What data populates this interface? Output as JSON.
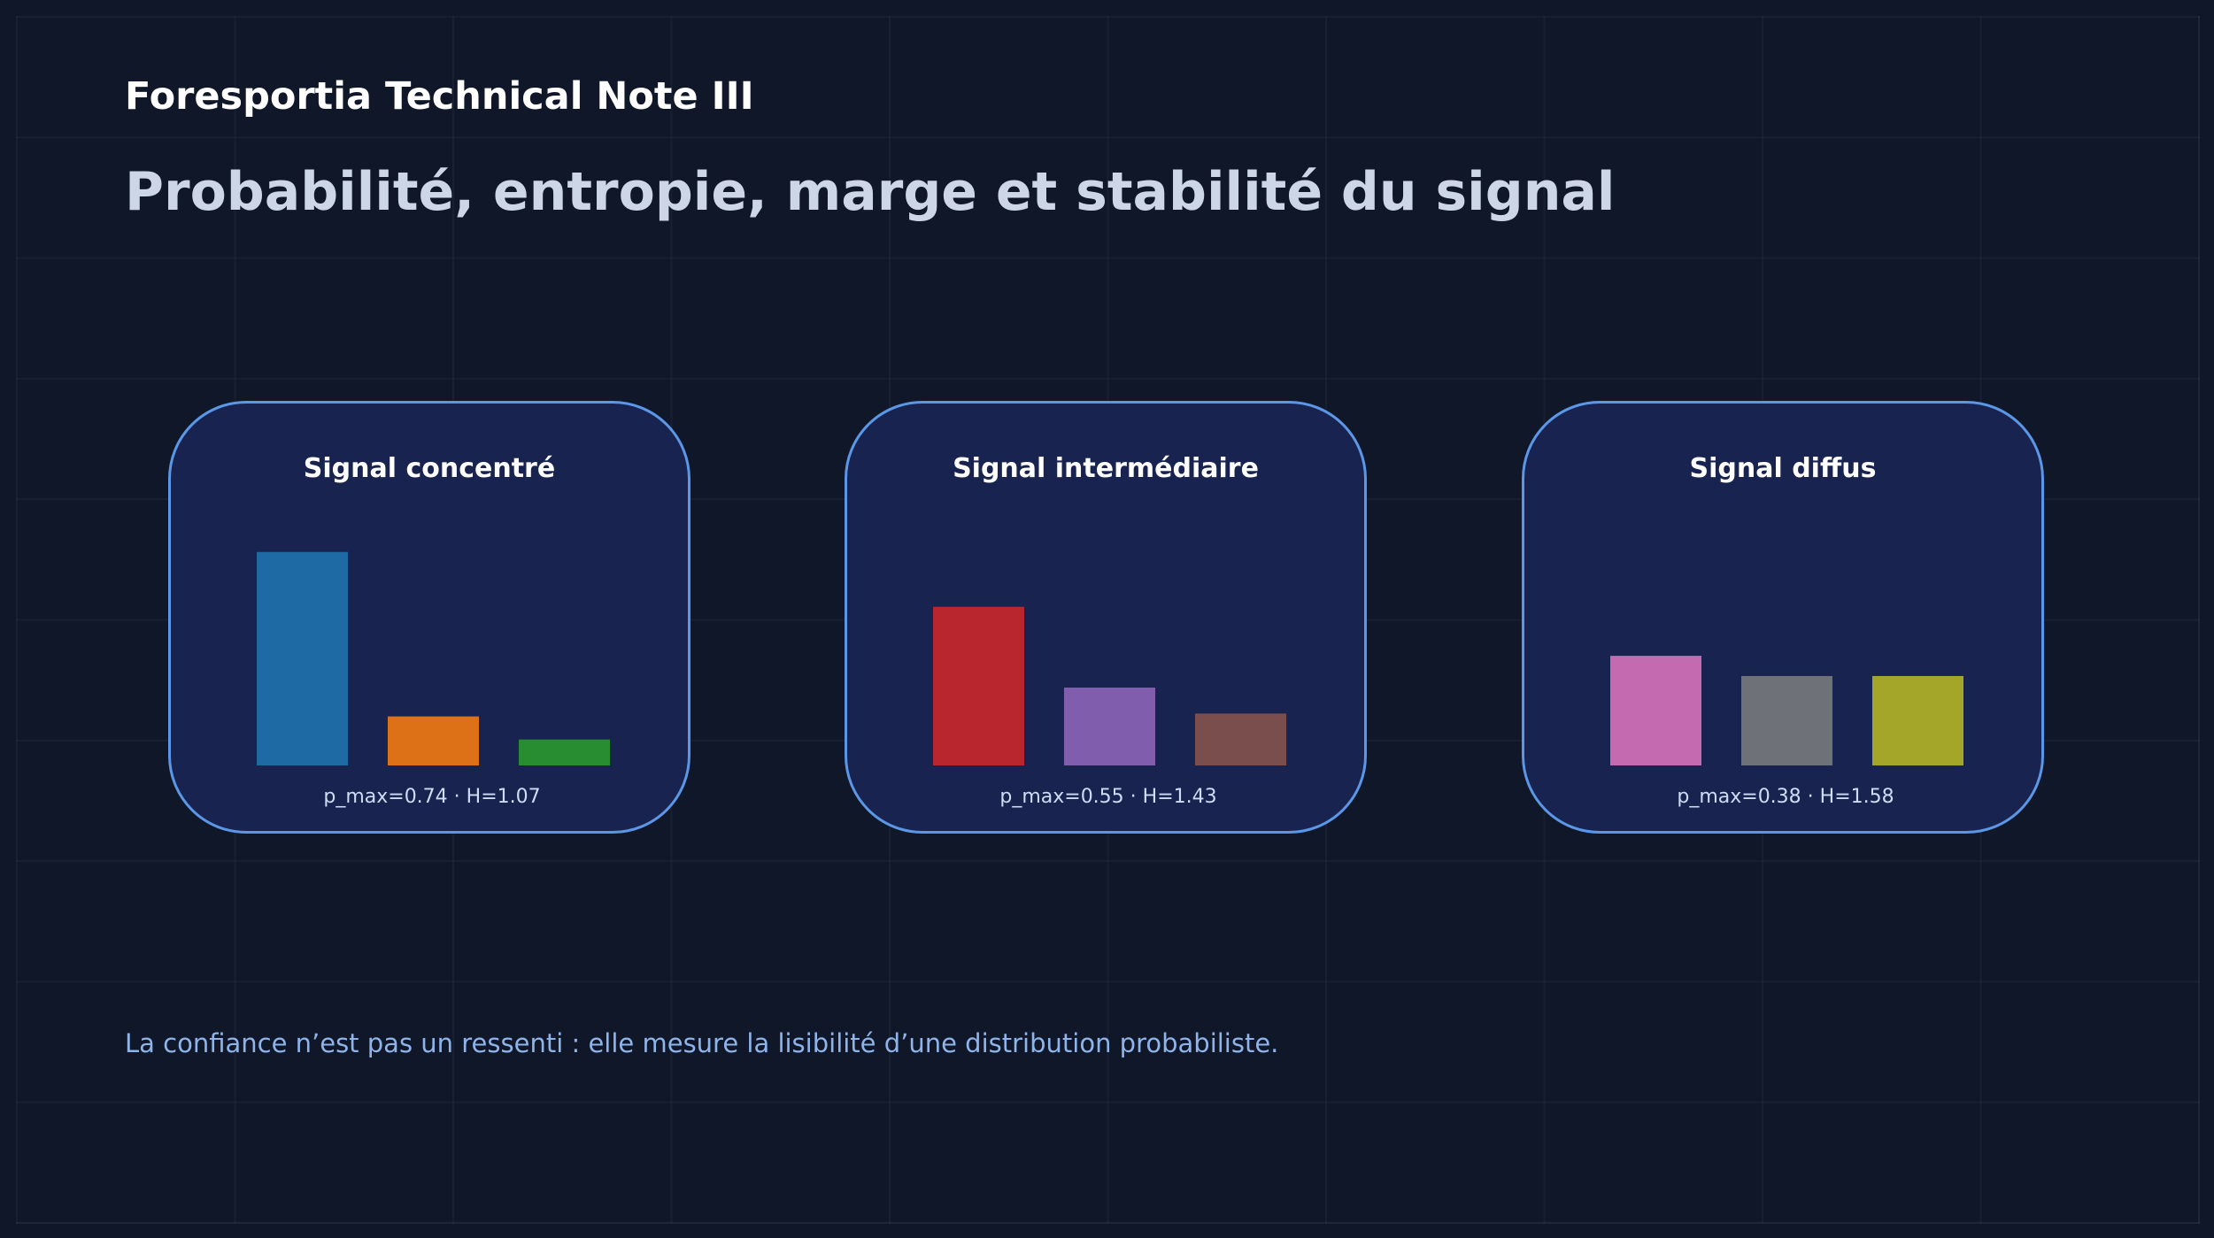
{
  "header": {
    "title": "Foresportia Technical Note III",
    "subtitle": "Probabilité, entropie, marge et stabilité du signal"
  },
  "colors": {
    "background": "#0f1729",
    "panel_fill": "#18234f",
    "panel_border": "#5b97e6",
    "footer_text": "#8fb4ea"
  },
  "chart_data": [
    {
      "type": "bar",
      "title": "Signal concentré",
      "annotation": "p_max=0.74 · H=1.07",
      "values": [
        0.74,
        0.17,
        0.09
      ],
      "colors": [
        "#1f77b4",
        "#ff7f0e",
        "#2ca02c"
      ],
      "ylim": [
        0,
        1
      ]
    },
    {
      "type": "bar",
      "title": "Signal intermédiaire",
      "annotation": "p_max=0.55 · H=1.43",
      "values": [
        0.55,
        0.27,
        0.18
      ],
      "colors": [
        "#d62728",
        "#9467bd",
        "#8c564b"
      ],
      "ylim": [
        0,
        1
      ]
    },
    {
      "type": "bar",
      "title": "Signal diffus",
      "annotation": "p_max=0.38 · H=1.58",
      "values": [
        0.38,
        0.31,
        0.31
      ],
      "colors": [
        "#e377c2",
        "#7f7f7f",
        "#bcbd22"
      ],
      "ylim": [
        0,
        1
      ]
    }
  ],
  "footer": {
    "note": "La confiance n’est pas un ressenti : elle mesure la lisibilité d’une distribution probabiliste."
  }
}
